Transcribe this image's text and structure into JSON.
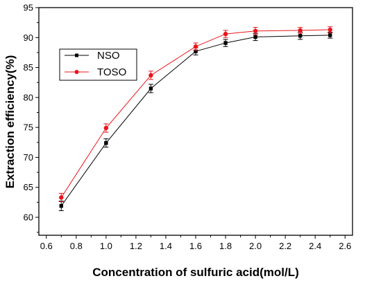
{
  "chart_data": {
    "type": "line",
    "title": "",
    "xlabel": "Concentration of sulfuric acid(mol/L)",
    "ylabel": "Extraction efficiency(%)",
    "xlim": [
      0.55,
      2.65
    ],
    "ylim": [
      57,
      95
    ],
    "xticks": [
      0.6,
      0.8,
      1.0,
      1.2,
      1.4,
      1.6,
      1.8,
      2.0,
      2.2,
      2.4,
      2.6
    ],
    "xtick_labels": [
      "0.6",
      "0.8",
      "1.0",
      "1.2",
      "1.4",
      "1.6",
      "1.8",
      "2.0",
      "2.2",
      "2.4",
      "2.6"
    ],
    "yticks": [
      60,
      65,
      70,
      75,
      80,
      85,
      90,
      95
    ],
    "ytick_labels": [
      "60",
      "65",
      "70",
      "75",
      "80",
      "85",
      "90",
      "95"
    ],
    "grid": false,
    "legend_position": "upper-left",
    "series": [
      {
        "name": "NSO",
        "color": "#000000",
        "marker": "square",
        "x": [
          0.7,
          1.0,
          1.3,
          1.6,
          1.8,
          2.0,
          2.3,
          2.5
        ],
        "y": [
          61.9,
          72.4,
          81.5,
          87.7,
          89.1,
          90.1,
          90.3,
          90.4
        ],
        "error": [
          0.8,
          0.7,
          0.7,
          0.6,
          0.6,
          0.6,
          0.6,
          0.5
        ]
      },
      {
        "name": "TOSO",
        "color": "#e8141b",
        "marker": "circle",
        "x": [
          0.7,
          1.0,
          1.3,
          1.6,
          1.8,
          2.0,
          2.3,
          2.5
        ],
        "y": [
          63.3,
          74.9,
          83.7,
          88.5,
          90.6,
          91.1,
          91.2,
          91.3
        ],
        "error": [
          0.7,
          0.7,
          0.7,
          0.6,
          0.6,
          0.6,
          0.5,
          0.5
        ]
      }
    ]
  }
}
